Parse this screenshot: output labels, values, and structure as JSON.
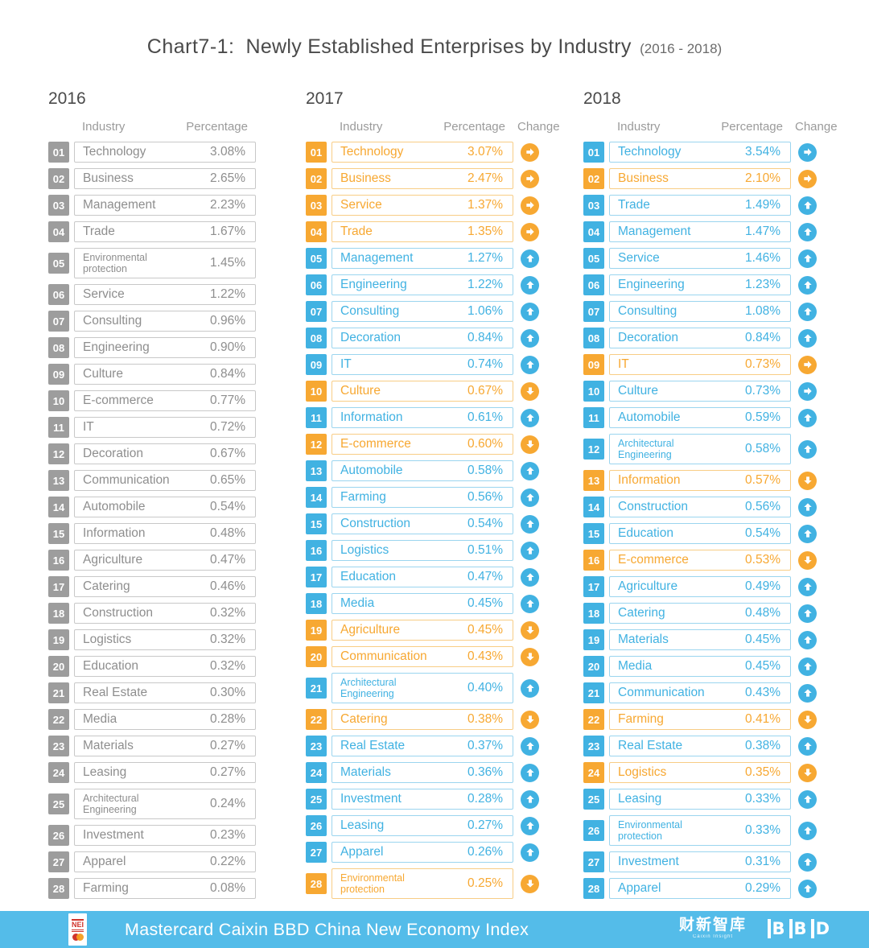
{
  "title": {
    "prefix": "Chart7-1:",
    "main": "Newly Established Enterprises by Industry",
    "suffix": "(2016 - 2018)"
  },
  "colors": {
    "blue": "#41B2E2",
    "blue_border": "#9BD5EF",
    "orange": "#F7A832",
    "orange_border": "#F8CD85",
    "gray_badge": "#9D9D9D",
    "gray_border": "#C8C8C8",
    "gray_text": "#8E8E8E",
    "footer_bar": "#54BCE9",
    "title_text": "#4A4A4A",
    "header_text": "#9B9B9B"
  },
  "chart_data": {
    "type": "table",
    "title": "Chart7-1: Newly Established Enterprises by Industry (2016 - 2018)",
    "legend": {
      "blue": "value increased vs prior year",
      "orange": "value decreased vs prior year",
      "arrow_up": "rank moved up",
      "arrow_down": "rank moved down",
      "arrow_right": "rank unchanged"
    },
    "tables": [
      {
        "year": "2016",
        "headers": {
          "industry": "Industry",
          "percentage": "Percentage"
        },
        "rows": [
          {
            "rank": "01",
            "industry": "Technology",
            "percentage": "3.08%",
            "color": "gray"
          },
          {
            "rank": "02",
            "industry": "Business",
            "percentage": "2.65%",
            "color": "gray"
          },
          {
            "rank": "03",
            "industry": "Management",
            "percentage": "2.23%",
            "color": "gray"
          },
          {
            "rank": "04",
            "industry": "Trade",
            "percentage": "1.67%",
            "color": "gray"
          },
          {
            "rank": "05",
            "industry": "Environmental protection",
            "percentage": "1.45%",
            "color": "gray",
            "wrap": true
          },
          {
            "rank": "06",
            "industry": "Service",
            "percentage": "1.22%",
            "color": "gray"
          },
          {
            "rank": "07",
            "industry": "Consulting",
            "percentage": "0.96%",
            "color": "gray"
          },
          {
            "rank": "08",
            "industry": "Engineering",
            "percentage": "0.90%",
            "color": "gray"
          },
          {
            "rank": "09",
            "industry": "Culture",
            "percentage": "0.84%",
            "color": "gray"
          },
          {
            "rank": "10",
            "industry": "E-commerce",
            "percentage": "0.77%",
            "color": "gray"
          },
          {
            "rank": "11",
            "industry": "IT",
            "percentage": "0.72%",
            "color": "gray"
          },
          {
            "rank": "12",
            "industry": "Decoration",
            "percentage": "0.67%",
            "color": "gray"
          },
          {
            "rank": "13",
            "industry": "Communication",
            "percentage": "0.65%",
            "color": "gray"
          },
          {
            "rank": "14",
            "industry": "Automobile",
            "percentage": "0.54%",
            "color": "gray"
          },
          {
            "rank": "15",
            "industry": "Information",
            "percentage": "0.48%",
            "color": "gray"
          },
          {
            "rank": "16",
            "industry": "Agriculture",
            "percentage": "0.47%",
            "color": "gray"
          },
          {
            "rank": "17",
            "industry": "Catering",
            "percentage": "0.46%",
            "color": "gray"
          },
          {
            "rank": "18",
            "industry": "Construction",
            "percentage": "0.32%",
            "color": "gray"
          },
          {
            "rank": "19",
            "industry": "Logistics",
            "percentage": "0.32%",
            "color": "gray"
          },
          {
            "rank": "20",
            "industry": "Education",
            "percentage": "0.32%",
            "color": "gray"
          },
          {
            "rank": "21",
            "industry": "Real Estate",
            "percentage": "0.30%",
            "color": "gray"
          },
          {
            "rank": "22",
            "industry": "Media",
            "percentage": "0.28%",
            "color": "gray"
          },
          {
            "rank": "23",
            "industry": "Materials",
            "percentage": "0.27%",
            "color": "gray"
          },
          {
            "rank": "24",
            "industry": "Leasing",
            "percentage": "0.27%",
            "color": "gray"
          },
          {
            "rank": "25",
            "industry": "Architectural Engineering",
            "percentage": "0.24%",
            "color": "gray",
            "wrap": true
          },
          {
            "rank": "26",
            "industry": "Investment",
            "percentage": "0.23%",
            "color": "gray"
          },
          {
            "rank": "27",
            "industry": "Apparel",
            "percentage": "0.22%",
            "color": "gray"
          },
          {
            "rank": "28",
            "industry": "Farming",
            "percentage": "0.08%",
            "color": "gray"
          }
        ]
      },
      {
        "year": "2017",
        "headers": {
          "industry": "Industry",
          "percentage": "Percentage",
          "change": "Change"
        },
        "rows": [
          {
            "rank": "01",
            "industry": "Technology",
            "percentage": "3.07%",
            "color": "orange",
            "arrow": "right"
          },
          {
            "rank": "02",
            "industry": "Business",
            "percentage": "2.47%",
            "color": "orange",
            "arrow": "right"
          },
          {
            "rank": "03",
            "industry": "Service",
            "percentage": "1.37%",
            "color": "orange",
            "arrow": "right"
          },
          {
            "rank": "04",
            "industry": "Trade",
            "percentage": "1.35%",
            "color": "orange",
            "arrow": "right"
          },
          {
            "rank": "05",
            "industry": "Management",
            "percentage": "1.27%",
            "color": "blue",
            "arrow": "up"
          },
          {
            "rank": "06",
            "industry": "Engineering",
            "percentage": "1.22%",
            "color": "blue",
            "arrow": "up"
          },
          {
            "rank": "07",
            "industry": "Consulting",
            "percentage": "1.06%",
            "color": "blue",
            "arrow": "up"
          },
          {
            "rank": "08",
            "industry": "Decoration",
            "percentage": "0.84%",
            "color": "blue",
            "arrow": "up"
          },
          {
            "rank": "09",
            "industry": "IT",
            "percentage": "0.74%",
            "color": "blue",
            "arrow": "up"
          },
          {
            "rank": "10",
            "industry": "Culture",
            "percentage": "0.67%",
            "color": "orange",
            "arrow": "down"
          },
          {
            "rank": "11",
            "industry": "Information",
            "percentage": "0.61%",
            "color": "blue",
            "arrow": "up"
          },
          {
            "rank": "12",
            "industry": "E-commerce",
            "percentage": "0.60%",
            "color": "orange",
            "arrow": "down"
          },
          {
            "rank": "13",
            "industry": "Automobile",
            "percentage": "0.58%",
            "color": "blue",
            "arrow": "up"
          },
          {
            "rank": "14",
            "industry": "Farming",
            "percentage": "0.56%",
            "color": "blue",
            "arrow": "up"
          },
          {
            "rank": "15",
            "industry": "Construction",
            "percentage": "0.54%",
            "color": "blue",
            "arrow": "up"
          },
          {
            "rank": "16",
            "industry": "Logistics",
            "percentage": "0.51%",
            "color": "blue",
            "arrow": "up"
          },
          {
            "rank": "17",
            "industry": "Education",
            "percentage": "0.47%",
            "color": "blue",
            "arrow": "up"
          },
          {
            "rank": "18",
            "industry": "Media",
            "percentage": "0.45%",
            "color": "blue",
            "arrow": "up"
          },
          {
            "rank": "19",
            "industry": "Agriculture",
            "percentage": "0.45%",
            "color": "orange",
            "arrow": "down"
          },
          {
            "rank": "20",
            "industry": "Communication",
            "percentage": "0.43%",
            "color": "orange",
            "arrow": "down"
          },
          {
            "rank": "21",
            "industry": "Architectural Engineering",
            "percentage": "0.40%",
            "color": "blue",
            "arrow": "up",
            "wrap": true
          },
          {
            "rank": "22",
            "industry": "Catering",
            "percentage": "0.38%",
            "color": "orange",
            "arrow": "down"
          },
          {
            "rank": "23",
            "industry": "Real Estate",
            "percentage": "0.37%",
            "color": "blue",
            "arrow": "up"
          },
          {
            "rank": "24",
            "industry": "Materials",
            "percentage": "0.36%",
            "color": "blue",
            "arrow": "up"
          },
          {
            "rank": "25",
            "industry": "Investment",
            "percentage": "0.28%",
            "color": "blue",
            "arrow": "up"
          },
          {
            "rank": "26",
            "industry": "Leasing",
            "percentage": "0.27%",
            "color": "blue",
            "arrow": "up"
          },
          {
            "rank": "27",
            "industry": "Apparel",
            "percentage": "0.26%",
            "color": "blue",
            "arrow": "up"
          },
          {
            "rank": "28",
            "industry": "Environmental protection",
            "percentage": "0.25%",
            "color": "orange",
            "arrow": "down",
            "wrap": true
          }
        ]
      },
      {
        "year": "2018",
        "headers": {
          "industry": "Industry",
          "percentage": "Percentage",
          "change": "Change"
        },
        "rows": [
          {
            "rank": "01",
            "industry": "Technology",
            "percentage": "3.54%",
            "color": "blue",
            "arrow": "right"
          },
          {
            "rank": "02",
            "industry": "Business",
            "percentage": "2.10%",
            "color": "orange",
            "arrow": "right"
          },
          {
            "rank": "03",
            "industry": "Trade",
            "percentage": "1.49%",
            "color": "blue",
            "arrow": "up"
          },
          {
            "rank": "04",
            "industry": "Management",
            "percentage": "1.47%",
            "color": "blue",
            "arrow": "up"
          },
          {
            "rank": "05",
            "industry": "Service",
            "percentage": "1.46%",
            "color": "blue",
            "arrow": "up"
          },
          {
            "rank": "06",
            "industry": "Engineering",
            "percentage": "1.23%",
            "color": "blue",
            "arrow": "up"
          },
          {
            "rank": "07",
            "industry": "Consulting",
            "percentage": "1.08%",
            "color": "blue",
            "arrow": "up"
          },
          {
            "rank": "08",
            "industry": "Decoration",
            "percentage": "0.84%",
            "color": "blue",
            "arrow": "up"
          },
          {
            "rank": "09",
            "industry": "IT",
            "percentage": "0.73%",
            "color": "orange",
            "arrow": "right"
          },
          {
            "rank": "10",
            "industry": "Culture",
            "percentage": "0.73%",
            "color": "blue",
            "arrow": "right"
          },
          {
            "rank": "11",
            "industry": "Automobile",
            "percentage": "0.59%",
            "color": "blue",
            "arrow": "up"
          },
          {
            "rank": "12",
            "industry": "Architectural Engineering",
            "percentage": "0.58%",
            "color": "blue",
            "arrow": "up",
            "wrap": true
          },
          {
            "rank": "13",
            "industry": "Information",
            "percentage": "0.57%",
            "color": "orange",
            "arrow": "down"
          },
          {
            "rank": "14",
            "industry": "Construction",
            "percentage": "0.56%",
            "color": "blue",
            "arrow": "up"
          },
          {
            "rank": "15",
            "industry": "Education",
            "percentage": "0.54%",
            "color": "blue",
            "arrow": "up"
          },
          {
            "rank": "16",
            "industry": "E-commerce",
            "percentage": "0.53%",
            "color": "orange",
            "arrow": "down"
          },
          {
            "rank": "17",
            "industry": "Agriculture",
            "percentage": "0.49%",
            "color": "blue",
            "arrow": "up"
          },
          {
            "rank": "18",
            "industry": "Catering",
            "percentage": "0.48%",
            "color": "blue",
            "arrow": "up"
          },
          {
            "rank": "19",
            "industry": "Materials",
            "percentage": "0.45%",
            "color": "blue",
            "arrow": "up"
          },
          {
            "rank": "20",
            "industry": "Media",
            "percentage": "0.45%",
            "color": "blue",
            "arrow": "up"
          },
          {
            "rank": "21",
            "industry": "Communication",
            "percentage": "0.43%",
            "color": "blue",
            "arrow": "up"
          },
          {
            "rank": "22",
            "industry": "Farming",
            "percentage": "0.41%",
            "color": "orange",
            "arrow": "down"
          },
          {
            "rank": "23",
            "industry": "Real Estate",
            "percentage": "0.38%",
            "color": "blue",
            "arrow": "up"
          },
          {
            "rank": "24",
            "industry": "Logistics",
            "percentage": "0.35%",
            "color": "orange",
            "arrow": "down"
          },
          {
            "rank": "25",
            "industry": "Leasing",
            "percentage": "0.33%",
            "color": "blue",
            "arrow": "up"
          },
          {
            "rank": "26",
            "industry": "Environmental protection",
            "percentage": "0.33%",
            "color": "blue",
            "arrow": "up",
            "wrap": true
          },
          {
            "rank": "27",
            "industry": "Investment",
            "percentage": "0.31%",
            "color": "blue",
            "arrow": "up"
          },
          {
            "rank": "28",
            "industry": "Apparel",
            "percentage": "0.29%",
            "color": "blue",
            "arrow": "up"
          }
        ]
      }
    ]
  },
  "footer": {
    "nei_logo_text": "NEI",
    "title": "Mastercard Caixin BBD China New Economy Index",
    "caixin_logo": "财新智库",
    "caixin_logo_sub": "Caixin Insight",
    "bbd_logo": "BBD"
  }
}
